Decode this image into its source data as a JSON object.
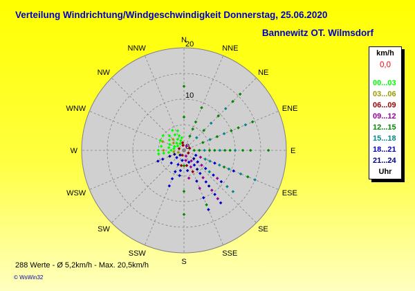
{
  "header": {
    "title": "Verteilung Windrichtung/Windgeschwindigkeit  Donnerstag, 25.06.2020",
    "station": "Bannewitz OT. Wilmsdorf"
  },
  "legend": {
    "unit": "km/h",
    "calm": "0,0",
    "bands": [
      {
        "label": "00...03",
        "color": "#00ff00"
      },
      {
        "label": "03...06",
        "color": "#999900"
      },
      {
        "label": "06...09",
        "color": "#990000"
      },
      {
        "label": "09...12",
        "color": "#990099"
      },
      {
        "label": "12...15",
        "color": "#008800"
      },
      {
        "label": "15...18",
        "color": "#008888"
      },
      {
        "label": "18...21",
        "color": "#0000cc"
      },
      {
        "label": "21...24",
        "color": "#000088"
      }
    ],
    "hours_label": "Uhr"
  },
  "footer": {
    "summary": "288 Werte   -   Ø 5,2km/h  -  Max. 20,5km/h",
    "software": "© WsWin32"
  },
  "chart_data": {
    "type": "scatter",
    "projection": "polar",
    "directions": [
      "N",
      "NNE",
      "NE",
      "ENE",
      "E",
      "ESE",
      "SE",
      "SSE",
      "S",
      "SSW",
      "SW",
      "WSW",
      "W",
      "WNW",
      "NW",
      "NNW"
    ],
    "rlim": [
      0,
      20
    ],
    "ring_labels": [
      "0",
      "10",
      "20"
    ],
    "grid": true,
    "legend_position": "right",
    "points": [
      {
        "dir": 0,
        "speed": 12.5,
        "band": 4
      },
      {
        "dir": 0,
        "speed": 6.5,
        "band": 4
      },
      {
        "dir": 22.5,
        "speed": 6.0,
        "band": 4
      },
      {
        "dir": 22.5,
        "speed": 9.0,
        "band": 4
      },
      {
        "dir": 22.5,
        "speed": 4.5,
        "band": 4
      },
      {
        "dir": 22.5,
        "speed": 3.0,
        "band": 4
      },
      {
        "dir": 45,
        "speed": 3.5,
        "band": 5
      },
      {
        "dir": 45,
        "speed": 5.5,
        "band": 4
      },
      {
        "dir": 45,
        "speed": 7.5,
        "band": 5
      },
      {
        "dir": 45,
        "speed": 9.5,
        "band": 4
      },
      {
        "dir": 45,
        "speed": 11.5,
        "band": 5
      },
      {
        "dir": 45,
        "speed": 13.5,
        "band": 4
      },
      {
        "dir": 45,
        "speed": 15.5,
        "band": 4
      },
      {
        "dir": 67.5,
        "speed": 4.0,
        "band": 4
      },
      {
        "dir": 67.5,
        "speed": 5.5,
        "band": 5
      },
      {
        "dir": 67.5,
        "speed": 7.0,
        "band": 4
      },
      {
        "dir": 67.5,
        "speed": 8.5,
        "band": 5
      },
      {
        "dir": 67.5,
        "speed": 10.0,
        "band": 4
      },
      {
        "dir": 67.5,
        "speed": 11.5,
        "band": 4
      },
      {
        "dir": 67.5,
        "speed": 13.0,
        "band": 5
      },
      {
        "dir": 67.5,
        "speed": 14.5,
        "band": 4
      },
      {
        "dir": 90,
        "speed": 2.0,
        "band": 4
      },
      {
        "dir": 90,
        "speed": 3.0,
        "band": 4
      },
      {
        "dir": 90,
        "speed": 4.0,
        "band": 5
      },
      {
        "dir": 90,
        "speed": 5.0,
        "band": 4
      },
      {
        "dir": 90,
        "speed": 6.0,
        "band": 4
      },
      {
        "dir": 90,
        "speed": 7.0,
        "band": 5
      },
      {
        "dir": 90,
        "speed": 8.0,
        "band": 4
      },
      {
        "dir": 90,
        "speed": 9.0,
        "band": 4
      },
      {
        "dir": 90,
        "speed": 10.0,
        "band": 5
      },
      {
        "dir": 90,
        "speed": 11.5,
        "band": 4
      },
      {
        "dir": 90,
        "speed": 13.0,
        "band": 4
      },
      {
        "dir": 90,
        "speed": 16.5,
        "band": 4
      },
      {
        "dir": 112.5,
        "speed": 2.5,
        "band": 6
      },
      {
        "dir": 112.5,
        "speed": 3.5,
        "band": 3
      },
      {
        "dir": 112.5,
        "speed": 4.5,
        "band": 5
      },
      {
        "dir": 112.5,
        "speed": 5.5,
        "band": 5
      },
      {
        "dir": 112.5,
        "speed": 6.5,
        "band": 6
      },
      {
        "dir": 112.5,
        "speed": 7.5,
        "band": 5
      },
      {
        "dir": 112.5,
        "speed": 8.5,
        "band": 4
      },
      {
        "dir": 112.5,
        "speed": 9.5,
        "band": 5
      },
      {
        "dir": 112.5,
        "speed": 10.5,
        "band": 6
      },
      {
        "dir": 112.5,
        "speed": 12.0,
        "band": 5
      },
      {
        "dir": 112.5,
        "speed": 13.5,
        "band": 4
      },
      {
        "dir": 112.5,
        "speed": 15.0,
        "band": 5
      },
      {
        "dir": 130,
        "speed": 2.5,
        "band": 7
      },
      {
        "dir": 130,
        "speed": 3.5,
        "band": 6
      },
      {
        "dir": 130,
        "speed": 4.5,
        "band": 3
      },
      {
        "dir": 130,
        "speed": 5.5,
        "band": 6
      },
      {
        "dir": 130,
        "speed": 6.5,
        "band": 5
      },
      {
        "dir": 130,
        "speed": 7.5,
        "band": 6
      },
      {
        "dir": 130,
        "speed": 8.5,
        "band": 3
      },
      {
        "dir": 130,
        "speed": 9.5,
        "band": 6
      },
      {
        "dir": 130,
        "speed": 11.0,
        "band": 5
      },
      {
        "dir": 130,
        "speed": 12.5,
        "band": 5
      },
      {
        "dir": 145,
        "speed": 2.5,
        "band": 3
      },
      {
        "dir": 145,
        "speed": 3.5,
        "band": 6
      },
      {
        "dir": 145,
        "speed": 4.5,
        "band": 7
      },
      {
        "dir": 145,
        "speed": 5.5,
        "band": 6
      },
      {
        "dir": 145,
        "speed": 6.5,
        "band": 3
      },
      {
        "dir": 145,
        "speed": 7.5,
        "band": 6
      },
      {
        "dir": 145,
        "speed": 8.5,
        "band": 7
      },
      {
        "dir": 145,
        "speed": 9.5,
        "band": 3
      },
      {
        "dir": 145,
        "speed": 10.5,
        "band": 6
      },
      {
        "dir": 145,
        "speed": 11.5,
        "band": 3
      },
      {
        "dir": 145,
        "speed": 12.5,
        "band": 6
      },
      {
        "dir": 157.5,
        "speed": 2.5,
        "band": 6
      },
      {
        "dir": 157.5,
        "speed": 3.5,
        "band": 3
      },
      {
        "dir": 157.5,
        "speed": 4.5,
        "band": 2
      },
      {
        "dir": 157.5,
        "speed": 6.5,
        "band": 6
      },
      {
        "dir": 157.5,
        "speed": 8.0,
        "band": 3
      },
      {
        "dir": 157.5,
        "speed": 10.0,
        "band": 6
      },
      {
        "dir": 157.5,
        "speed": 11.5,
        "band": 4
      },
      {
        "dir": 157.5,
        "speed": 12.5,
        "band": 6
      },
      {
        "dir": 170,
        "speed": 2.0,
        "band": 3
      },
      {
        "dir": 170,
        "speed": 3.0,
        "band": 2
      },
      {
        "dir": 170,
        "speed": 4.0,
        "band": 6
      },
      {
        "dir": 170,
        "speed": 5.5,
        "band": 3
      },
      {
        "dir": 180,
        "speed": 3.0,
        "band": 4
      },
      {
        "dir": 180,
        "speed": 8.0,
        "band": 4
      },
      {
        "dir": 180,
        "speed": 12.5,
        "band": 4
      },
      {
        "dir": 190,
        "speed": 2.0,
        "band": 6
      },
      {
        "dir": 190,
        "speed": 3.0,
        "band": 2
      },
      {
        "dir": 190,
        "speed": 4.0,
        "band": 6
      },
      {
        "dir": 190,
        "speed": 5.0,
        "band": 6
      },
      {
        "dir": 202.5,
        "speed": 3.0,
        "band": 6
      },
      {
        "dir": 202.5,
        "speed": 4.5,
        "band": 6
      },
      {
        "dir": 202.5,
        "speed": 6.0,
        "band": 6
      },
      {
        "dir": 202.5,
        "speed": 7.5,
        "band": 6
      },
      {
        "dir": 225,
        "speed": 2.0,
        "band": 6
      },
      {
        "dir": 225,
        "speed": 3.5,
        "band": 6
      },
      {
        "dir": 247.5,
        "speed": 2.0,
        "band": 7
      },
      {
        "dir": 247.5,
        "speed": 3.0,
        "band": 7
      },
      {
        "dir": 247.5,
        "speed": 4.5,
        "band": 6
      },
      {
        "dir": 247.5,
        "speed": 5.5,
        "band": 6
      },
      {
        "dir": 262,
        "speed": 2.0,
        "band": 1
      },
      {
        "dir": 262,
        "speed": 3.0,
        "band": 0
      },
      {
        "dir": 262,
        "speed": 4.0,
        "band": 0
      },
      {
        "dir": 262,
        "speed": 5.0,
        "band": 0
      },
      {
        "dir": 270,
        "speed": 2.5,
        "band": 0
      },
      {
        "dir": 270,
        "speed": 4.0,
        "band": 1
      },
      {
        "dir": 270,
        "speed": 5.0,
        "band": 0
      },
      {
        "dir": 280,
        "speed": 2.0,
        "band": 0
      },
      {
        "dir": 280,
        "speed": 3.0,
        "band": 0
      },
      {
        "dir": 280,
        "speed": 4.5,
        "band": 0
      },
      {
        "dir": 292.5,
        "speed": 2.0,
        "band": 0
      },
      {
        "dir": 292.5,
        "speed": 3.0,
        "band": 0
      },
      {
        "dir": 292.5,
        "speed": 4.5,
        "band": 1
      },
      {
        "dir": 292.5,
        "speed": 5.0,
        "band": 0
      },
      {
        "dir": 305,
        "speed": 1.5,
        "band": 0
      },
      {
        "dir": 305,
        "speed": 2.5,
        "band": 1
      },
      {
        "dir": 305,
        "speed": 3.5,
        "band": 0
      },
      {
        "dir": 305,
        "speed": 5.0,
        "band": 0
      },
      {
        "dir": 315,
        "speed": 2.0,
        "band": 0
      },
      {
        "dir": 315,
        "speed": 3.0,
        "band": 1
      },
      {
        "dir": 315,
        "speed": 4.0,
        "band": 0
      },
      {
        "dir": 330,
        "speed": 1.5,
        "band": 0
      },
      {
        "dir": 330,
        "speed": 2.5,
        "band": 0
      },
      {
        "dir": 330,
        "speed": 3.5,
        "band": 0
      },
      {
        "dir": 330,
        "speed": 4.5,
        "band": 0
      },
      {
        "dir": 342,
        "speed": 2.0,
        "band": 0
      },
      {
        "dir": 342,
        "speed": 3.0,
        "band": 0
      },
      {
        "dir": 342,
        "speed": 4.0,
        "band": 0
      },
      {
        "dir": 350,
        "speed": 1.5,
        "band": 2
      },
      {
        "dir": 350,
        "speed": 2.5,
        "band": 0
      },
      {
        "dir": 350,
        "speed": 1.0,
        "band": 2
      },
      {
        "dir": 120,
        "speed": 1.0,
        "band": 2
      },
      {
        "dir": 200,
        "speed": 1.0,
        "band": 2
      },
      {
        "dir": 290,
        "speed": 1.0,
        "band": 2
      },
      {
        "dir": 30,
        "speed": 1.0,
        "band": 3
      },
      {
        "dir": 250,
        "speed": 1.2,
        "band": 1
      },
      {
        "dir": 70,
        "speed": 1.2,
        "band": 2
      },
      {
        "dir": 160,
        "speed": 1.2,
        "band": 3
      },
      {
        "dir": 220,
        "speed": 1.2,
        "band": 7
      }
    ]
  }
}
